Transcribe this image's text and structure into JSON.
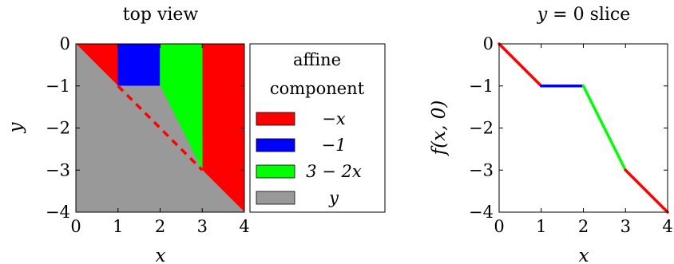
{
  "chart_data": [
    {
      "type": "area",
      "title": "top view",
      "xlabel": "x",
      "ylabel": "y",
      "xlim": [
        0,
        4
      ],
      "ylim": [
        -4,
        0
      ],
      "xticks": [
        "0",
        "1",
        "2",
        "3",
        "4"
      ],
      "yticks": [
        "0",
        "−1",
        "−2",
        "−3",
        "−4"
      ],
      "grid": false,
      "regions": [
        {
          "name": "−x",
          "color": "#ff0000",
          "polygon": [
            [
              0,
              0
            ],
            [
              1,
              0
            ],
            [
              1,
              -1
            ]
          ]
        },
        {
          "name": "−x",
          "color": "#ff0000",
          "polygon": [
            [
              3,
              0
            ],
            [
              4,
              0
            ],
            [
              4,
              -4
            ],
            [
              3,
              -3
            ]
          ]
        },
        {
          "name": "−1",
          "color": "#0000ff",
          "polygon": [
            [
              1,
              0
            ],
            [
              2,
              0
            ],
            [
              2,
              -1
            ],
            [
              1,
              -1
            ]
          ]
        },
        {
          "name": "3 − 2x",
          "color": "#00ff00",
          "polygon": [
            [
              2,
              0
            ],
            [
              3,
              0
            ],
            [
              3,
              -3
            ],
            [
              2,
              -1
            ]
          ]
        },
        {
          "name": "y",
          "color": "#999999",
          "polygon": [
            [
              0,
              0
            ],
            [
              1,
              -1
            ],
            [
              2,
              -1
            ],
            [
              3,
              -3
            ],
            [
              4,
              -4
            ],
            [
              0,
              -4
            ]
          ]
        }
      ],
      "annotation_line": {
        "color": "#ff0000",
        "style": "dashed",
        "points": [
          [
            1,
            -1
          ],
          [
            3,
            -3
          ]
        ]
      },
      "legend": {
        "title": [
          "affine",
          "component"
        ],
        "placement": "right",
        "entries": [
          {
            "label": "−x",
            "color": "#ff0000"
          },
          {
            "label": "−1",
            "color": "#0000ff"
          },
          {
            "label": "3 − 2x",
            "color": "#00ff00"
          },
          {
            "label": "y",
            "color": "#999999"
          }
        ]
      }
    },
    {
      "type": "line",
      "title": "y = 0 slice",
      "xlabel": "x",
      "ylabel": "f(x, 0)",
      "xlim": [
        0,
        4
      ],
      "ylim": [
        -4,
        0
      ],
      "xticks": [
        "0",
        "1",
        "2",
        "3",
        "4"
      ],
      "yticks": [
        "0",
        "−1",
        "−2",
        "−3",
        "−4"
      ],
      "grid": false,
      "series": [
        {
          "color": "#ff0000",
          "x": [
            0,
            1
          ],
          "y": [
            0,
            -1
          ]
        },
        {
          "color": "#0000ff",
          "x": [
            1,
            2
          ],
          "y": [
            -1,
            -1
          ]
        },
        {
          "color": "#00ff00",
          "x": [
            2,
            3
          ],
          "y": [
            -1,
            -3
          ]
        },
        {
          "color": "#ff0000",
          "x": [
            3,
            4
          ],
          "y": [
            -3,
            -4
          ]
        }
      ]
    }
  ]
}
